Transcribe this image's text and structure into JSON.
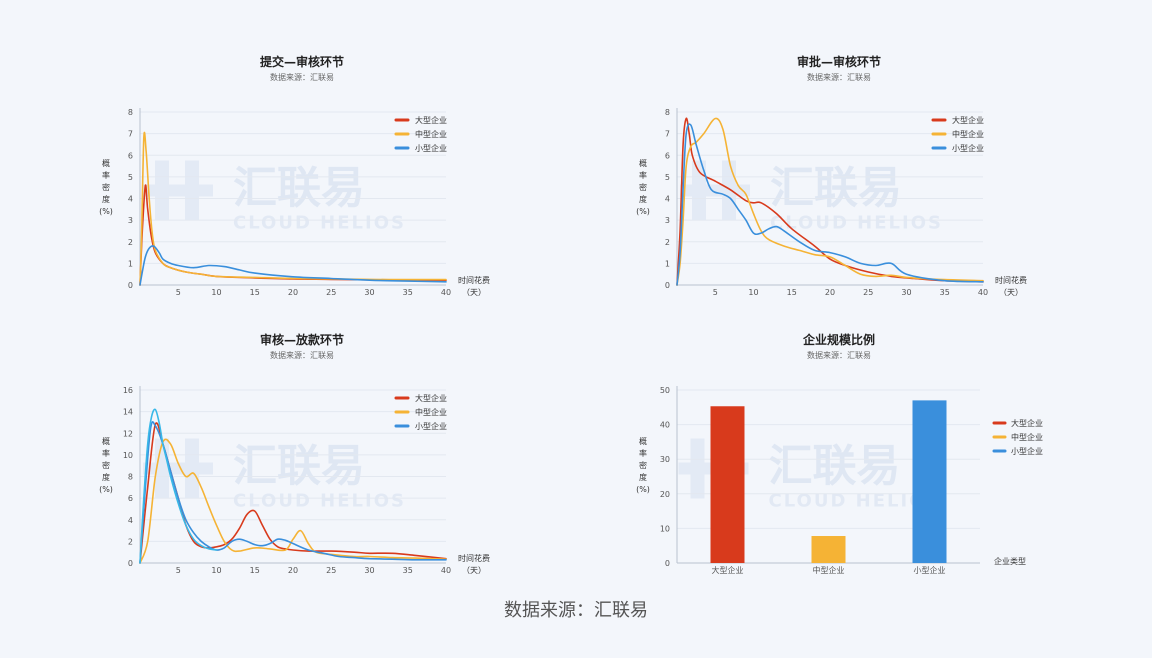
{
  "footer": "数据来源：汇联易",
  "watermark": {
    "cn": "汇联易",
    "en": "CLOUD HELIOS"
  },
  "colors": {
    "大型企业": "#d83a1c",
    "中型企业": "#f5b335",
    "小型企业": "#3a8fdc",
    "小型企业_line2": "#38b8e8",
    "grid": "#e3e8f0",
    "axis": "#b9c2cf"
  },
  "chart_data": [
    {
      "type": "line",
      "title": "提交—审核环节",
      "subtitle": "数据来源：汇联易",
      "xlabel": "时间花费（天）",
      "ylabel": "概率密度（%）",
      "xlim": [
        0,
        40
      ],
      "ylim": [
        0,
        8
      ],
      "xticks": [
        5,
        10,
        15,
        20,
        25,
        30,
        35,
        40
      ],
      "yticks": [
        0,
        1,
        2,
        3,
        4,
        5,
        6,
        7,
        8
      ],
      "legend": [
        "大型企业",
        "中型企业",
        "小型企业"
      ],
      "legend_position": "top-right",
      "series": [
        {
          "name": "大型企业",
          "x": [
            0,
            0.3,
            0.7,
            1,
            1.5,
            2,
            3,
            4,
            6,
            8,
            10,
            15,
            20,
            25,
            30,
            35,
            40
          ],
          "y": [
            0,
            2.5,
            4.6,
            3.5,
            2.2,
            1.5,
            1.0,
            0.8,
            0.6,
            0.5,
            0.4,
            0.33,
            0.28,
            0.26,
            0.24,
            0.22,
            0.22
          ]
        },
        {
          "name": "中型企业",
          "x": [
            0,
            0.2,
            0.5,
            0.8,
            1.2,
            1.6,
            2,
            3,
            4,
            6,
            8,
            10,
            15,
            20,
            25,
            30,
            35,
            40
          ],
          "y": [
            0,
            2.2,
            6.8,
            6.2,
            4.0,
            2.4,
            1.6,
            1.0,
            0.8,
            0.6,
            0.5,
            0.4,
            0.35,
            0.3,
            0.28,
            0.26,
            0.25,
            0.25
          ]
        },
        {
          "name": "小型企业",
          "x": [
            0,
            0.3,
            0.7,
            1.2,
            1.8,
            2.5,
            3,
            4,
            5,
            7,
            9,
            11,
            13,
            15,
            20,
            25,
            30,
            35,
            40
          ],
          "y": [
            0,
            0.6,
            1.3,
            1.7,
            1.8,
            1.5,
            1.2,
            1.0,
            0.9,
            0.8,
            0.9,
            0.85,
            0.7,
            0.55,
            0.38,
            0.3,
            0.22,
            0.18,
            0.15
          ]
        }
      ]
    },
    {
      "type": "line",
      "title": "审批—审核环节",
      "subtitle": "数据来源：汇联易",
      "xlabel": "时间花费（天）",
      "ylabel": "概率密度（%）",
      "xlim": [
        0,
        40
      ],
      "ylim": [
        0,
        8
      ],
      "xticks": [
        5,
        10,
        15,
        20,
        25,
        30,
        35,
        40
      ],
      "yticks": [
        0,
        1,
        2,
        3,
        4,
        5,
        6,
        7,
        8
      ],
      "legend": [
        "大型企业",
        "中型企业",
        "小型企业"
      ],
      "legend_position": "top-right",
      "series": [
        {
          "name": "大型企业",
          "x": [
            0,
            0.4,
            0.8,
            1.2,
            1.6,
            2,
            3,
            5,
            7,
            9,
            10,
            11,
            13,
            15,
            18,
            20,
            22,
            25,
            28,
            31,
            35,
            40
          ],
          "y": [
            0,
            2.5,
            6.5,
            7.7,
            7.0,
            6.0,
            5.2,
            4.8,
            4.4,
            3.9,
            3.8,
            3.8,
            3.3,
            2.6,
            1.8,
            1.2,
            0.9,
            0.6,
            0.4,
            0.3,
            0.2,
            0.15
          ]
        },
        {
          "name": "中型企业",
          "x": [
            0,
            0.4,
            0.8,
            1.2,
            1.8,
            2.5,
            3.5,
            5,
            6,
            7,
            8,
            9,
            10,
            11,
            12,
            14,
            16,
            18,
            20,
            22,
            24,
            26,
            28,
            30,
            35,
            40
          ],
          "y": [
            0,
            1.0,
            3.0,
            5.5,
            6.4,
            6.6,
            7.0,
            7.7,
            7.2,
            5.5,
            4.6,
            4.2,
            3.3,
            2.5,
            2.1,
            1.8,
            1.6,
            1.4,
            1.3,
            0.9,
            0.5,
            0.4,
            0.45,
            0.35,
            0.25,
            0.2
          ]
        },
        {
          "name": "小型企业",
          "x": [
            0,
            0.4,
            0.8,
            1.2,
            1.8,
            2.5,
            3.5,
            4.5,
            6,
            7,
            8,
            9,
            10,
            11,
            12,
            13,
            14,
            16,
            18,
            20,
            22,
            24,
            26,
            28,
            30,
            35,
            40
          ],
          "y": [
            0,
            1.5,
            4.5,
            7.0,
            7.4,
            6.5,
            5.3,
            4.4,
            4.2,
            4.0,
            3.5,
            3.0,
            2.4,
            2.4,
            2.6,
            2.7,
            2.5,
            2.0,
            1.6,
            1.5,
            1.3,
            1.0,
            0.9,
            1.0,
            0.5,
            0.2,
            0.15
          ]
        }
      ]
    },
    {
      "type": "line",
      "title": "审核—放款环节",
      "subtitle": "数据来源：汇联易",
      "xlabel": "时间花费（天）",
      "ylabel": "概率密度（%）",
      "xlim": [
        0,
        40
      ],
      "ylim": [
        0,
        16
      ],
      "xticks": [
        5,
        10,
        15,
        20,
        25,
        30,
        35,
        40
      ],
      "yticks": [
        0,
        2,
        4,
        6,
        8,
        10,
        12,
        14,
        16
      ],
      "legend": [
        "大型企业",
        "中型企业",
        "小型企业"
      ],
      "legend_position": "top-right",
      "series": [
        {
          "name": "大型企业",
          "x": [
            0,
            1,
            2,
            3,
            4,
            5,
            6,
            7,
            8,
            9,
            10,
            11,
            12,
            13,
            14,
            15,
            16,
            17,
            18,
            19,
            20,
            22,
            25,
            28,
            30,
            33,
            36,
            40
          ],
          "y": [
            0,
            7,
            12.8,
            11.0,
            8.5,
            6.0,
            3.5,
            2.0,
            1.5,
            1.4,
            1.5,
            1.7,
            2.2,
            3.2,
            4.5,
            4.8,
            3.5,
            2.2,
            1.5,
            1.3,
            1.2,
            1.1,
            1.1,
            1.0,
            0.9,
            0.9,
            0.7,
            0.4
          ]
        },
        {
          "name": "中型企业",
          "x": [
            0,
            1,
            2,
            3,
            4,
            5,
            6,
            7,
            8,
            9,
            10,
            11,
            12,
            13,
            15,
            17,
            19,
            20,
            21,
            22,
            23,
            25,
            28,
            30,
            33,
            36,
            40
          ],
          "y": [
            0,
            2,
            8,
            11.2,
            11.0,
            9.2,
            8.0,
            8.3,
            7.0,
            5.2,
            3.5,
            2.0,
            1.2,
            1.1,
            1.4,
            1.3,
            1.2,
            2.2,
            3.0,
            1.8,
            1.0,
            0.8,
            0.6,
            0.6,
            0.5,
            0.45,
            0.35
          ]
        },
        {
          "name": "小型企业",
          "x": [
            0,
            0.7,
            1.4,
            2,
            3,
            4,
            5,
            6,
            7,
            8,
            9,
            10,
            11,
            12,
            13,
            14,
            15,
            16,
            17,
            18,
            19,
            20,
            22,
            24,
            26,
            28,
            30,
            33,
            36,
            40
          ],
          "y": [
            0,
            7,
            12.5,
            12.7,
            11.0,
            8.5,
            6.0,
            4.0,
            2.8,
            2.0,
            1.5,
            1.2,
            1.4,
            2.0,
            2.2,
            2.0,
            1.7,
            1.6,
            1.8,
            2.2,
            2.1,
            1.8,
            1.2,
            0.9,
            0.6,
            0.5,
            0.4,
            0.35,
            0.3,
            0.3
          ]
        },
        {
          "name": "小型企业",
          "x": [
            0,
            0.5,
            1,
            1.5,
            2,
            2.5,
            3,
            3.5,
            4,
            5,
            6,
            7,
            8,
            9,
            10
          ],
          "y": [
            0,
            6,
            11,
            13.5,
            14.2,
            13.0,
            11.0,
            9.5,
            8.0,
            5.5,
            3.5,
            2.2,
            1.6,
            1.3,
            1.2
          ]
        }
      ]
    },
    {
      "type": "bar",
      "title": "企业规模比例",
      "subtitle": "数据来源：汇联易",
      "xlabel": "企业类型",
      "ylabel": "概率密度（%）",
      "ylim": [
        0,
        50
      ],
      "yticks": [
        0,
        10,
        20,
        30,
        40,
        50
      ],
      "categories": [
        "大型企业",
        "中型企业",
        "小型企业"
      ],
      "values": [
        45.3,
        7.8,
        47.0
      ],
      "legend": [
        "大型企业",
        "中型企业",
        "小型企业"
      ],
      "legend_position": "right"
    }
  ]
}
